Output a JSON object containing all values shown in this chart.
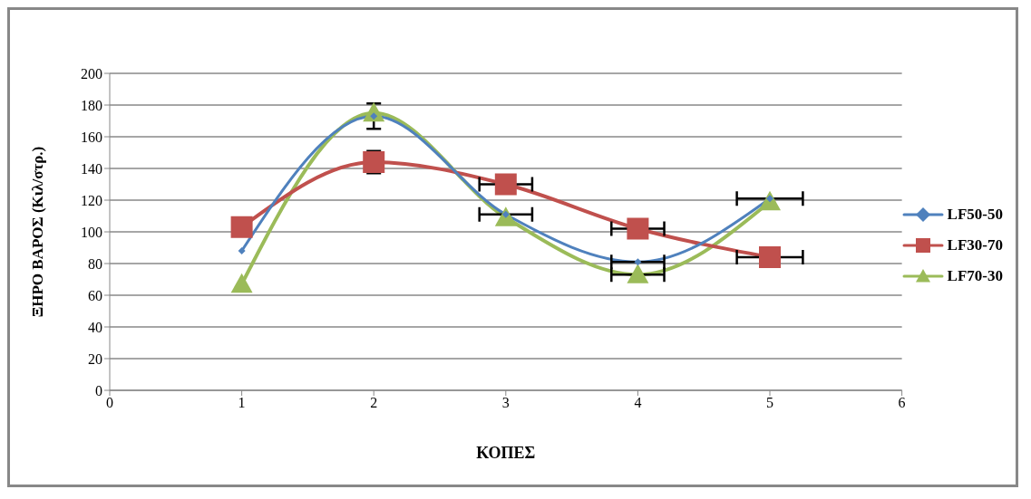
{
  "chart_data": {
    "type": "line",
    "xlabel": "ΚΟΠΕΣ",
    "ylabel": "ΞΗΡΟ ΒΑΡΟΣ (Κιλ/στρ.)",
    "x": [
      1,
      2,
      3,
      4,
      5
    ],
    "xlim": [
      0,
      6
    ],
    "xticks": [
      0,
      1,
      2,
      3,
      4,
      5,
      6
    ],
    "ylim": [
      0,
      200
    ],
    "yticks": [
      0,
      20,
      40,
      60,
      80,
      100,
      120,
      140,
      160,
      180,
      200
    ],
    "grid": "y",
    "legend": "right",
    "series": [
      {
        "name": "LF50-50",
        "color": "#4f81bd",
        "marker": "diamond",
        "values": [
          88,
          173,
          111,
          81,
          121
        ],
        "errors": [
          null,
          8,
          null,
          null,
          null
        ],
        "xerrors": [
          null,
          null,
          0.2,
          0.2,
          0.25
        ]
      },
      {
        "name": "LF30-70",
        "color": "#c0504d",
        "marker": "square",
        "values": [
          103,
          144,
          130,
          102,
          84
        ],
        "errors": [
          null,
          7,
          null,
          null,
          null
        ],
        "xerrors": [
          null,
          null,
          0.2,
          0.2,
          0.25
        ]
      },
      {
        "name": "LF70-30",
        "color": "#9bbb59",
        "marker": "triangle",
        "values": [
          67,
          175,
          109,
          73,
          119
        ],
        "errors": [
          null,
          null,
          null,
          null,
          null
        ],
        "xerrors": [
          null,
          null,
          null,
          0.2,
          null
        ]
      }
    ]
  }
}
